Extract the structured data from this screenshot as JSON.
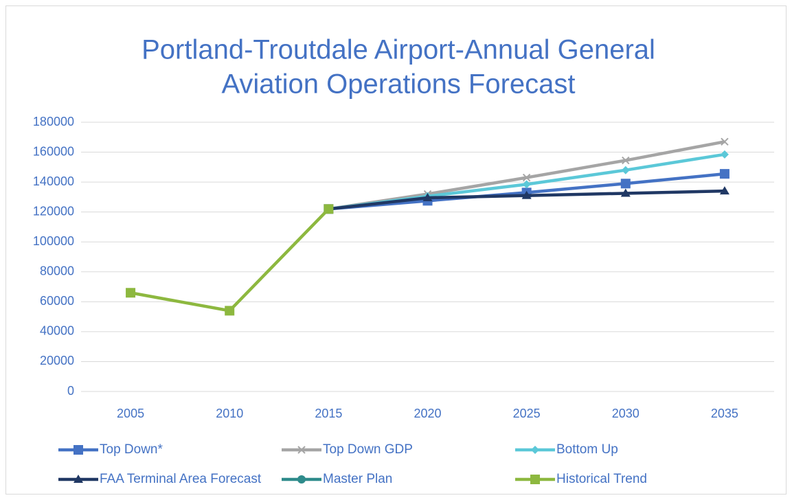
{
  "chart_data": {
    "type": "line",
    "title": [
      "Portland-Troutdale Airport-Annual General",
      "Aviation Operations Forecast"
    ],
    "categories": [
      "2005",
      "2010",
      "2015",
      "2020",
      "2025",
      "2030",
      "2035"
    ],
    "ylim": [
      0,
      180000
    ],
    "yticks": [
      0,
      20000,
      40000,
      60000,
      80000,
      100000,
      120000,
      140000,
      160000,
      180000
    ],
    "grid": true,
    "legend": "bottom",
    "series": [
      {
        "name": "Top Down*",
        "color": "#4472c4",
        "marker": "square",
        "values": [
          null,
          null,
          122000,
          127500,
          133000,
          139000,
          145500
        ]
      },
      {
        "name": "Top Down GDP",
        "color": "#a5a5a5",
        "marker": "x",
        "values": [
          null,
          null,
          122000,
          132000,
          143000,
          154500,
          167000
        ]
      },
      {
        "name": "Bottom Up",
        "color": "#5bc8d8",
        "marker": "diamond",
        "values": [
          null,
          null,
          122000,
          130500,
          138500,
          148000,
          158500
        ]
      },
      {
        "name": "FAA Terminal Area Forecast",
        "color": "#203864",
        "marker": "triangle",
        "values": [
          null,
          null,
          122000,
          129500,
          131000,
          132500,
          134000
        ]
      },
      {
        "name": "Master Plan",
        "color": "#2e8b8b",
        "marker": "circle",
        "values": [
          null,
          null,
          null,
          null,
          null,
          null,
          null
        ]
      },
      {
        "name": "Historical Trend",
        "color": "#8db83f",
        "marker": "square",
        "values": [
          66000,
          54000,
          122000,
          null,
          null,
          null,
          null
        ]
      }
    ]
  }
}
